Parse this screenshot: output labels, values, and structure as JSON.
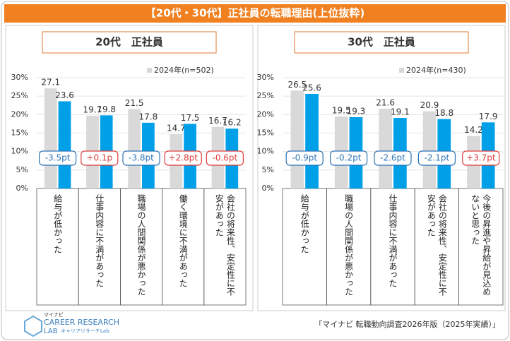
{
  "title": "【20代・30代】正社員の転職理由(上位抜粋)",
  "source": "「マイナビ 転職動向調査2026年版（2025年実績）」",
  "logo": {
    "brand": "マイナビ",
    "name": "CAREER RESEARCH",
    "sub": "LAB",
    "sub2": "キャリアリサーチLab"
  },
  "chart_data": [
    {
      "type": "bar",
      "title": "20代　正社員",
      "categories": [
        "給与が低かった",
        "仕事内容に不満があった",
        "職場の人間関係が悪かった",
        "働く環境に不満があった",
        "会社の将来性、安定性に不安があった"
      ],
      "series": [
        {
          "name": "2024年(n=502)",
          "color": "#d9d9d9",
          "values": [
            27.1,
            19.7,
            21.5,
            14.7,
            16.7
          ]
        },
        {
          "color": "#00a0e9",
          "values": [
            23.6,
            19.8,
            17.8,
            17.5,
            16.2
          ]
        }
      ],
      "annotations": [
        {
          "text": "-3.5pt",
          "color": "#2e75b6"
        },
        {
          "text": "+0.1p",
          "color": "#e03c3c"
        },
        {
          "text": "-3.8pt",
          "color": "#2e75b6"
        },
        {
          "text": "+2.8pt",
          "color": "#e03c3c"
        },
        {
          "text": "-0.6pt",
          "color": "#e03c3c"
        }
      ],
      "ylim": [
        0,
        30
      ],
      "yticks": [
        {
          "value": 0,
          "label": "0%"
        },
        {
          "value": 5,
          "label": "5%"
        },
        {
          "value": 10,
          "label": "10%"
        },
        {
          "value": 15,
          "label": "15%"
        },
        {
          "value": 20,
          "label": "20%"
        },
        {
          "value": 25,
          "label": "25%"
        },
        {
          "value": 30,
          "label": "30%"
        }
      ],
      "grid": true
    },
    {
      "type": "bar",
      "title": "30代　正社員",
      "categories": [
        "給与が低かった",
        "職場の人間関係が悪かった",
        "仕事内容に不満があった",
        "会社の将来性、安定性に不安があった",
        "今後の昇進や昇給が見込めないと思った"
      ],
      "series": [
        {
          "name": "2024年(n=430)",
          "color": "#d9d9d9",
          "values": [
            26.5,
            19.5,
            21.6,
            20.9,
            14.2
          ]
        },
        {
          "color": "#00a0e9",
          "values": [
            25.6,
            19.3,
            19.1,
            18.8,
            17.9
          ]
        }
      ],
      "annotations": [
        {
          "text": "-0.9pt",
          "color": "#2e75b6"
        },
        {
          "text": "-0.2pt",
          "color": "#2e75b6"
        },
        {
          "text": "-2.6pt",
          "color": "#2e75b6"
        },
        {
          "text": "-2.1pt",
          "color": "#2e75b6"
        },
        {
          "text": "+3.7pt",
          "color": "#e03c3c"
        }
      ],
      "ylim": [
        0,
        30
      ],
      "yticks": [
        {
          "value": 0,
          "label": "0%"
        },
        {
          "value": 5,
          "label": "5%"
        },
        {
          "value": 10,
          "label": "10%"
        },
        {
          "value": 15,
          "label": "15%"
        },
        {
          "value": 20,
          "label": "20%"
        },
        {
          "value": 25,
          "label": "25%"
        },
        {
          "value": 30,
          "label": "30%"
        }
      ],
      "grid": true
    }
  ]
}
